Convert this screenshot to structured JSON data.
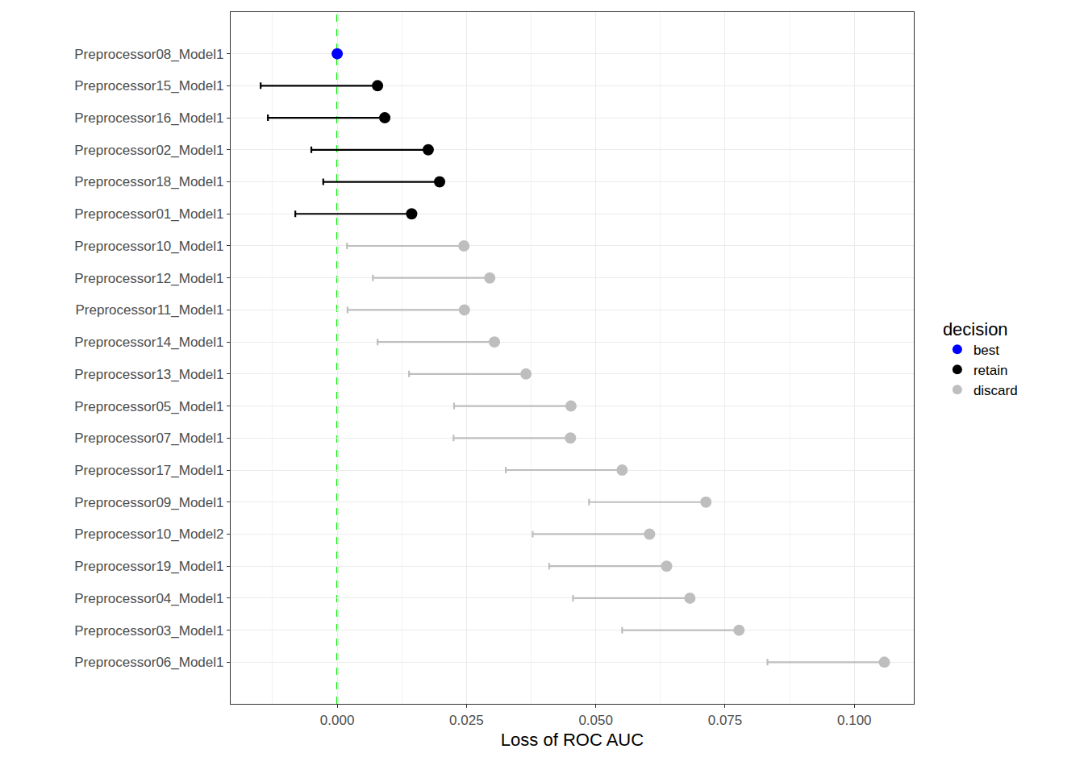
{
  "chart_data": {
    "type": "dot",
    "orientation": "horizontal",
    "x_label": "Loss of ROC AUC",
    "legend_title": "decision",
    "legend": "right",
    "grid": true,
    "marker": "circle",
    "reference_line": 0,
    "categories": [
      "Preprocessor08_Model1",
      "Preprocessor15_Model1",
      "Preprocessor16_Model1",
      "Preprocessor02_Model1",
      "Preprocessor18_Model1",
      "Preprocessor01_Model1",
      "Preprocessor10_Model1",
      "Preprocessor12_Model1",
      "Preprocessor11_Model1",
      "Preprocessor14_Model1",
      "Preprocessor13_Model1",
      "Preprocessor05_Model1",
      "Preprocessor07_Model1",
      "Preprocessor17_Model1",
      "Preprocessor09_Model1",
      "Preprocessor10_Model2",
      "Preprocessor19_Model1",
      "Preprocessor04_Model1",
      "Preprocessor03_Model1",
      "Preprocessor06_Model1"
    ],
    "series": [
      {
        "name": "best",
        "color": "#0000ff",
        "values": [
          0,
          null,
          null,
          null,
          null,
          null,
          null,
          null,
          null,
          null,
          null,
          null,
          null,
          null,
          null,
          null,
          null,
          null,
          null,
          null
        ],
        "lower": [
          null,
          null,
          null,
          null,
          null,
          null,
          null,
          null,
          null,
          null,
          null,
          null,
          null,
          null,
          null,
          null,
          null,
          null,
          null,
          null
        ]
      },
      {
        "name": "retain",
        "color": "#000000",
        "values": [
          null,
          0.0078,
          0.0092,
          0.0176,
          0.0198,
          0.0144,
          null,
          null,
          null,
          null,
          null,
          null,
          null,
          null,
          null,
          null,
          null,
          null,
          null,
          null
        ],
        "lower": [
          null,
          -0.0148,
          -0.0134,
          -0.005,
          -0.0027,
          -0.0081,
          null,
          null,
          null,
          null,
          null,
          null,
          null,
          null,
          null,
          null,
          null,
          null,
          null,
          null
        ]
      },
      {
        "name": "discard",
        "color": "#bebebe",
        "values": [
          null,
          null,
          null,
          null,
          null,
          null,
          0.0245,
          0.0295,
          0.0246,
          0.0304,
          0.0365,
          0.0452,
          0.0451,
          0.0551,
          0.0713,
          0.0604,
          0.0637,
          0.0682,
          0.0777,
          0.1058
        ],
        "lower": [
          null,
          null,
          null,
          null,
          null,
          null,
          0.0019,
          0.0069,
          0.002,
          0.0078,
          0.0139,
          0.0226,
          0.0225,
          0.0326,
          0.0487,
          0.0378,
          0.041,
          0.0456,
          0.0551,
          0.0832
        ]
      }
    ],
    "xlim": [
      -0.0206,
      0.1115
    ],
    "xticks": [
      {
        "value": 0,
        "label": "0.000"
      },
      {
        "value": 0.025,
        "label": "0.025"
      },
      {
        "value": 0.05,
        "label": "0.050"
      },
      {
        "value": 0.075,
        "label": "0.075"
      },
      {
        "value": 0.1,
        "label": "0.100"
      }
    ]
  }
}
